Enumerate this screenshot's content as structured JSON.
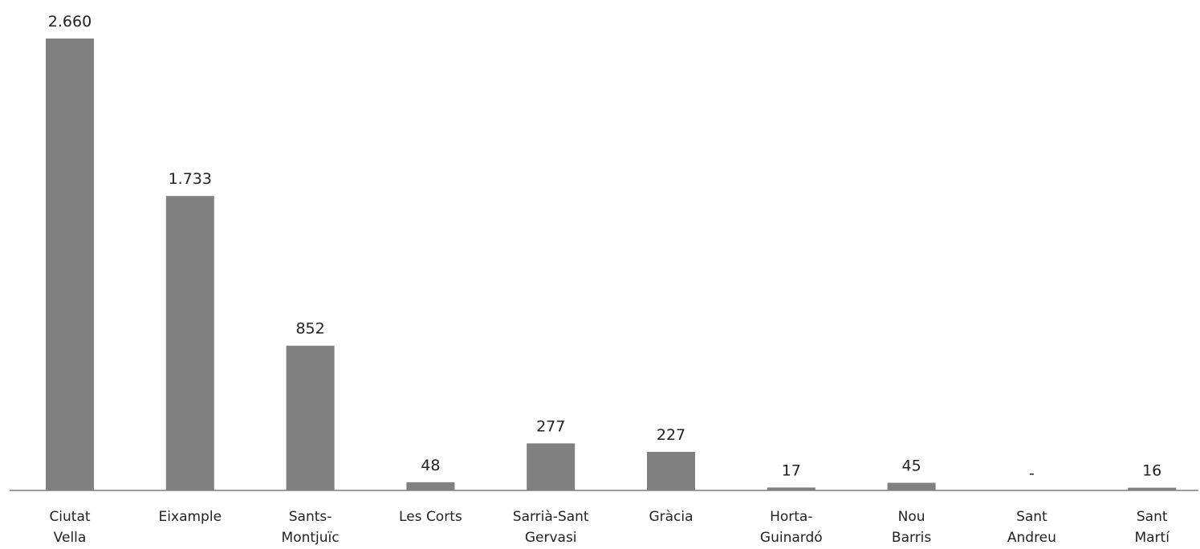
{
  "chart_data": {
    "type": "bar",
    "title": "",
    "xlabel": "",
    "ylabel": "",
    "ylim": [
      0,
      2660
    ],
    "grid": false,
    "legend": "none",
    "bar_color": "#808080",
    "categories": [
      [
        "Ciutat",
        "Vella"
      ],
      [
        "Eixample"
      ],
      [
        "Sants-",
        "Montjuïc"
      ],
      [
        "Les Corts"
      ],
      [
        "Sarrià-Sant",
        "Gervasi"
      ],
      [
        "Gràcia"
      ],
      [
        "Horta-",
        "Guinardó"
      ],
      [
        "Nou",
        "Barris"
      ],
      [
        "Sant",
        "Andreu"
      ],
      [
        "Sant",
        "Martí"
      ]
    ],
    "values": [
      2660,
      1733,
      852,
      48,
      277,
      227,
      17,
      45,
      0,
      16
    ],
    "data_labels": [
      "2.660",
      "1.733",
      "852",
      "48",
      "277",
      "227",
      "17",
      "45",
      "-",
      "16"
    ]
  }
}
